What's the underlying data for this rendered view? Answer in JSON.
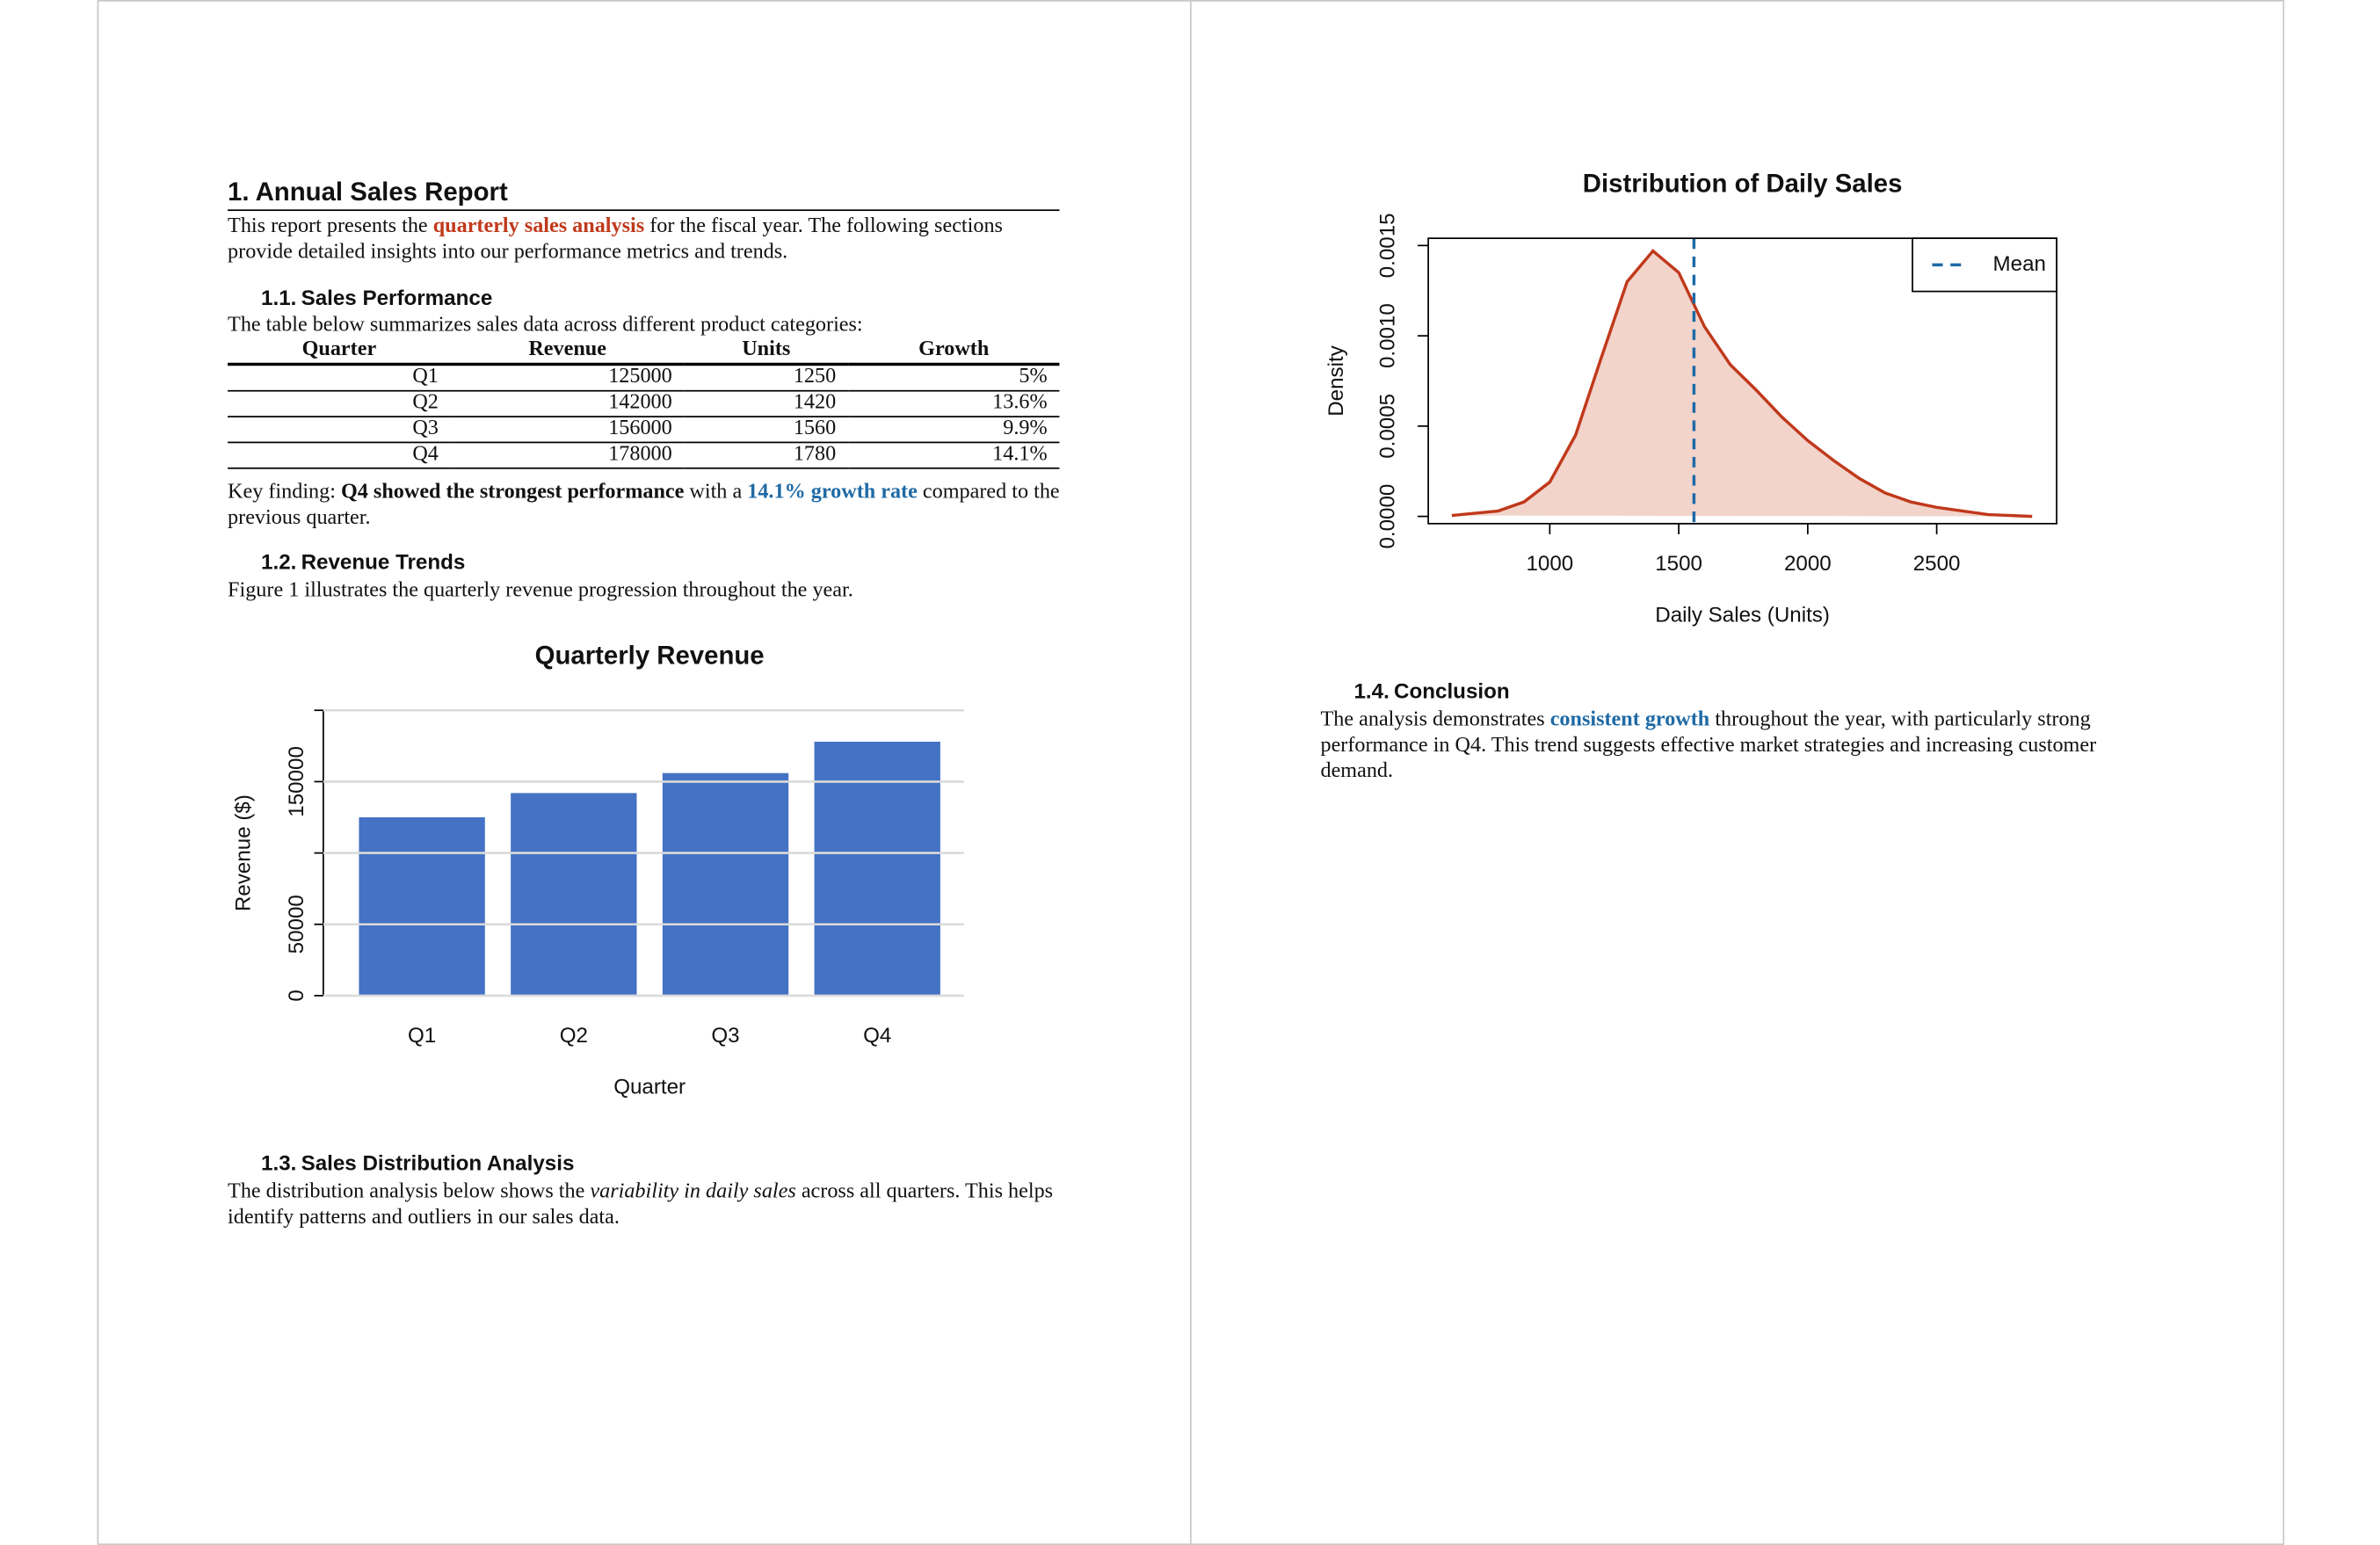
{
  "document": {
    "heading": "1. Annual Sales Report",
    "intro": [
      "This report presents the ",
      "quarterly sales analysis",
      " for the fiscal year. The following sections provide detailed insights into our performance metrics and trends."
    ],
    "sections": [
      {
        "number": "1.1.",
        "title": "Sales Performance",
        "text": "The table below summarizes sales data across different product categories:",
        "table": {
          "columns": [
            "Quarter",
            "Revenue",
            "Units",
            "Growth"
          ],
          "rows": [
            [
              "Q1",
              125000,
              1250,
              "5%"
            ],
            [
              "Q2",
              142000,
              1420,
              "13.6%"
            ],
            [
              "Q3",
              156000,
              1560,
              "9.9%"
            ],
            [
              "Q4",
              178000,
              1780,
              "14.1%"
            ]
          ]
        },
        "finding": [
          "Key finding: ",
          "Q4 showed the strongest performance",
          " with a ",
          "14.1% growth rate",
          " compared to the previous quarter."
        ]
      },
      {
        "number": "1.2.",
        "title": "Revenue Trends",
        "text": "Figure 1 illustrates the quarterly revenue progression throughout the year."
      },
      {
        "number": "1.3.",
        "title": "Sales Distribution Analysis",
        "text": [
          "The distribution analysis below shows the ",
          "variability in daily sales",
          " across all quarters. This helps identify patterns and outliers in our sales data."
        ]
      },
      {
        "number": "1.4.",
        "title": "Conclusion",
        "text": [
          "The analysis demonstrates ",
          "consistent growth",
          " throughout the year, with particularly strong performance in Q4. This trend suggests effective market strategies and increasing customer demand."
        ]
      }
    ]
  },
  "chart_data": [
    {
      "type": "bar",
      "title": "Quarterly Revenue",
      "xlabel": "Quarter",
      "ylabel": "Revenue ($)",
      "categories": [
        "Q1",
        "Q2",
        "Q3",
        "Q4"
      ],
      "values": [
        125000,
        142000,
        156000,
        178000
      ],
      "color": "#4472c4",
      "ylim": [
        0,
        200000
      ],
      "yticks": [
        0,
        50000,
        {
          "value": 100000,
          "label": null
        },
        150000,
        {
          "value": 200000,
          "label": null
        }
      ],
      "grid": true
    },
    {
      "type": "density",
      "title": "Distribution of Daily Sales",
      "xlabel": "Daily Sales (Units)",
      "ylabel": "Density",
      "x": [
        620,
        800,
        900,
        1000,
        1100,
        1200,
        1300,
        1400,
        1500,
        1600,
        1700,
        1800,
        1900,
        2000,
        2100,
        2200,
        2300,
        2400,
        2500,
        2600,
        2700,
        2870
      ],
      "values": [
        5e-06,
        3e-05,
        8e-05,
        0.00019,
        0.00045,
        0.00088,
        0.0013,
        0.00147,
        0.00135,
        0.00105,
        0.00084,
        0.0007,
        0.00055,
        0.00042,
        0.00031,
        0.00021,
        0.00013,
        8e-05,
        5e-05,
        3e-05,
        1e-05,
        0
      ],
      "color": "#c0391b",
      "fill_color": "#f2d4cb",
      "reference_line": {
        "name": "Mean",
        "value": 1559,
        "color": "#1f6aa5"
      },
      "legend": "upper right",
      "xlim": [
        529,
        2965
      ],
      "ylim": [
        -4e-05,
        0.00154
      ],
      "xticks": [
        1000,
        1500,
        2000,
        2500
      ],
      "yticks": [
        {
          "value": 0,
          "label": "0.0000"
        },
        {
          "value": 0.0005,
          "label": "0.0005"
        },
        {
          "value": 0.001,
          "label": "0.0010"
        },
        {
          "value": 0.0015,
          "label": "0.0015"
        }
      ]
    }
  ]
}
